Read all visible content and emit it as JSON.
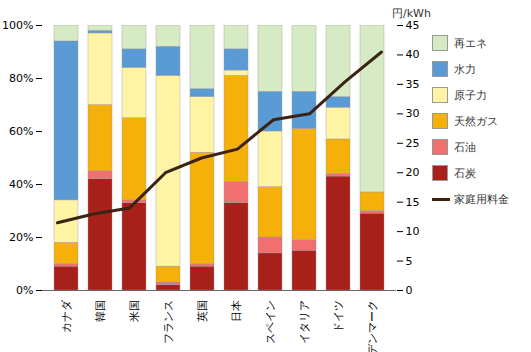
{
  "chart_data": {
    "type": "bar",
    "stacked": true,
    "y2_label": "円/kWh",
    "categories": [
      "カナダ",
      "韓国",
      "米国",
      "フランス",
      "英国",
      "日本",
      "スペイン",
      "イタリア",
      "ドイツ",
      "デンマーク"
    ],
    "ylim": [
      0,
      100
    ],
    "yticks": [
      {
        "value": 0,
        "label": "0%"
      },
      {
        "value": 20,
        "label": "20%"
      },
      {
        "value": 40,
        "label": "40%"
      },
      {
        "value": 60,
        "label": "60%"
      },
      {
        "value": 80,
        "label": "80%"
      },
      {
        "value": 100,
        "label": "100%"
      }
    ],
    "y2lim": [
      0,
      45
    ],
    "y2ticks": [
      0,
      5,
      10,
      15,
      20,
      25,
      30,
      35,
      40,
      45
    ],
    "legend": "right",
    "series": [
      {
        "name": "石炭",
        "color": "#a8201a",
        "values": [
          9,
          42,
          33,
          2,
          9,
          33,
          14,
          15,
          43,
          29
        ]
      },
      {
        "name": "石油",
        "color": "#f07070",
        "values": [
          1,
          3,
          1,
          1,
          1,
          8,
          6,
          4,
          1,
          1
        ]
      },
      {
        "name": "天然ガス",
        "color": "#f5b10a",
        "values": [
          8,
          25,
          31,
          6,
          42,
          40,
          19,
          42,
          13,
          7
        ]
      },
      {
        "name": "原子力",
        "color": "#fff3a6",
        "values": [
          16,
          27,
          19,
          72,
          21,
          2,
          21,
          0,
          12,
          0
        ]
      },
      {
        "name": "水力",
        "color": "#5b9bd5",
        "values": [
          60,
          1,
          7,
          11,
          3,
          8,
          15,
          14,
          4,
          0
        ]
      },
      {
        "name": "再エネ",
        "color": "#d6ebc4",
        "values": [
          6,
          2,
          9,
          8,
          24,
          9,
          25,
          25,
          27,
          63
        ]
      },
      {
        "name": "家庭用料金",
        "type": "line",
        "axis": "y2",
        "color": "#3b2314",
        "values": [
          11.5,
          13,
          14,
          20,
          22.5,
          24,
          29,
          30,
          35.5,
          40.5
        ]
      }
    ]
  }
}
